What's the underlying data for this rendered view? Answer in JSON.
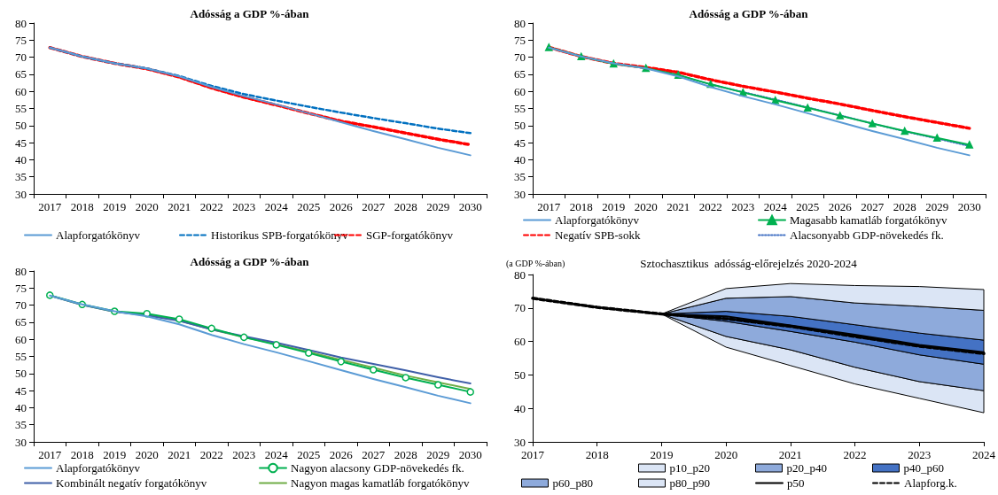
{
  "chart_data": [
    {
      "type": "line",
      "title": "Adósság a GDP %-ában",
      "categories": [
        "2017",
        "2018",
        "2019",
        "2020",
        "2021",
        "2022",
        "2023",
        "2024",
        "2025",
        "2026",
        "2027",
        "2028",
        "2029",
        "2030"
      ],
      "ylim": [
        30,
        80
      ],
      "yticks": [
        30,
        35,
        40,
        45,
        50,
        55,
        60,
        65,
        70,
        75,
        80
      ],
      "grid": false,
      "legend": "bottom",
      "series": [
        {
          "name": "Alapforgatókönyv",
          "color": "#5b9bd5",
          "line_style": "solid",
          "values": [
            72.8,
            70.2,
            68.2,
            66.7,
            64.4,
            61.3,
            58.6,
            56.2,
            53.6,
            51.0,
            48.4,
            46.0,
            43.5,
            41.3
          ]
        },
        {
          "name": "Historikus SPB-forgatókönyv",
          "color": "#0070c0",
          "line_style": "dashed",
          "values": [
            72.8,
            70.2,
            68.2,
            66.7,
            64.5,
            61.6,
            59.2,
            57.3,
            55.5,
            53.8,
            52.2,
            50.7,
            49.1,
            47.8
          ]
        },
        {
          "name": "SGP-forgatókönyv",
          "color": "#ff0000",
          "line_style": "dashed",
          "values": [
            72.8,
            70.2,
            68.2,
            66.6,
            64.2,
            61.0,
            58.3,
            56.0,
            53.6,
            51.3,
            49.6,
            47.8,
            46.0,
            44.4
          ]
        }
      ]
    },
    {
      "type": "line",
      "title": "Adósság a GDP %-ában",
      "categories": [
        "2017",
        "2018",
        "2019",
        "2020",
        "2021",
        "2022",
        "2023",
        "2024",
        "2025",
        "2026",
        "2027",
        "2028",
        "2029",
        "2030"
      ],
      "ylim": [
        30,
        80
      ],
      "yticks": [
        30,
        35,
        40,
        45,
        50,
        55,
        60,
        65,
        70,
        75,
        80
      ],
      "grid": false,
      "legend": "bottom",
      "series": [
        {
          "name": "Alapforgatókönyv",
          "color": "#5b9bd5",
          "line_style": "solid",
          "values": [
            72.8,
            70.2,
            68.2,
            66.7,
            64.4,
            61.3,
            58.6,
            56.2,
            53.6,
            51.0,
            48.4,
            46.0,
            43.5,
            41.3
          ]
        },
        {
          "name": "Magasabb kamatláb forgatókönyv",
          "color": "#00b050",
          "line_style": "solid",
          "marker": "triangle",
          "values": [
            72.9,
            70.2,
            68.1,
            66.8,
            64.8,
            62.1,
            59.7,
            57.4,
            55.2,
            52.9,
            50.6,
            48.4,
            46.4,
            44.4
          ]
        },
        {
          "name": "Negatív SPB-sokk",
          "color": "#ff0000",
          "line_style": "dashed",
          "values": [
            72.9,
            70.2,
            68.2,
            67.0,
            65.6,
            63.4,
            61.5,
            59.8,
            58.0,
            56.3,
            54.4,
            52.6,
            50.9,
            49.2
          ]
        },
        {
          "name": "Alacsonyabb GDP-növekedés fk.",
          "color": "#4472c4",
          "line_style": "dotted",
          "values": [
            72.9,
            70.2,
            68.1,
            66.8,
            64.8,
            62.0,
            59.8,
            57.6,
            55.3,
            53.0,
            50.6,
            48.3,
            46.2,
            44.0
          ]
        }
      ]
    },
    {
      "type": "line",
      "title": "Adósság a GDP %-ában",
      "categories": [
        "2017",
        "2018",
        "2019",
        "2020",
        "2021",
        "2022",
        "2023",
        "2024",
        "2025",
        "2026",
        "2027",
        "2028",
        "2029",
        "2030"
      ],
      "ylim": [
        30,
        80
      ],
      "yticks": [
        30,
        35,
        40,
        45,
        50,
        55,
        60,
        65,
        70,
        75,
        80
      ],
      "grid": false,
      "legend": "bottom",
      "series": [
        {
          "name": "Alapforgatókönyv",
          "color": "#5b9bd5",
          "line_style": "solid",
          "values": [
            72.8,
            70.2,
            68.2,
            66.7,
            64.4,
            61.3,
            58.6,
            56.2,
            53.6,
            51.0,
            48.4,
            46.0,
            43.5,
            41.3
          ]
        },
        {
          "name": "Nagyon alacsony GDP-növekedés fk.",
          "color": "#00b050",
          "line_style": "solid",
          "marker": "circle",
          "values": [
            72.9,
            70.2,
            68.2,
            67.5,
            65.9,
            63.2,
            60.6,
            58.4,
            56.0,
            53.5,
            51.1,
            48.8,
            46.7,
            44.6
          ]
        },
        {
          "name": "Kombinált negatív forgatókönyv",
          "color": "#3f5fa8",
          "line_style": "solid",
          "values": [
            72.8,
            70.1,
            68.1,
            67.0,
            65.4,
            62.9,
            60.9,
            59.0,
            56.9,
            54.7,
            52.8,
            50.9,
            48.9,
            47.1
          ]
        },
        {
          "name": "Nagyon magas kamatláb forgatókönyv",
          "color": "#70ad47",
          "line_style": "solid",
          "values": [
            72.8,
            70.1,
            68.1,
            67.2,
            65.5,
            62.9,
            60.6,
            58.6,
            56.3,
            54.0,
            51.7,
            49.4,
            47.4,
            45.5
          ]
        }
      ]
    },
    {
      "type": "area",
      "title": "Sztochasztikus  adósság-előrejelzés 2020-2024",
      "ylabel": "(a GDP %-ában)",
      "categories": [
        "2017",
        "2018",
        "2019",
        "2020",
        "2021",
        "2022",
        "2023",
        "2024"
      ],
      "ylim": [
        30,
        80
      ],
      "yticks": [
        30,
        40,
        50,
        60,
        70,
        80
      ],
      "grid": false,
      "legend": "bottom",
      "series": [
        {
          "name": "p10_p20",
          "color": "#dbe5f5",
          "values": [
            null,
            null,
            null,
            null,
            null,
            null,
            null,
            null
          ],
          "lower": [
            null,
            null,
            68.2,
            58.3,
            52.8,
            47.3,
            43.0,
            38.7
          ],
          "upper": [
            null,
            null,
            68.2,
            61.5,
            57.5,
            52.3,
            48.0,
            45.3
          ]
        },
        {
          "name": "p20_p40",
          "color": "#8eaadb",
          "values": [
            null,
            null,
            null,
            null,
            null,
            null,
            null,
            null
          ],
          "lower": [
            null,
            null,
            68.2,
            61.5,
            57.5,
            52.3,
            48.0,
            45.3
          ],
          "upper": [
            null,
            null,
            68.2,
            66.0,
            63.0,
            59.8,
            56.0,
            53.2
          ]
        },
        {
          "name": "p40_p60",
          "color": "#4472c4",
          "values": [
            null,
            null,
            null,
            null,
            null,
            null,
            null,
            null
          ],
          "lower": [
            null,
            null,
            68.2,
            66.0,
            63.0,
            59.8,
            56.0,
            53.2
          ],
          "upper": [
            null,
            null,
            68.2,
            69.0,
            67.5,
            65.0,
            62.5,
            60.4
          ]
        },
        {
          "name": "p60_p80",
          "color": "#8eaadb",
          "values": [
            null,
            null,
            null,
            null,
            null,
            null,
            null,
            null
          ],
          "lower": [
            null,
            null,
            68.2,
            69.0,
            67.5,
            65.0,
            62.5,
            60.4
          ],
          "upper": [
            null,
            null,
            68.2,
            72.9,
            73.4,
            71.5,
            70.5,
            69.3
          ]
        },
        {
          "name": "p80_p90",
          "color": "#dbe5f5",
          "values": [
            null,
            null,
            null,
            null,
            null,
            null,
            null,
            null
          ],
          "lower": [
            null,
            null,
            68.2,
            72.9,
            73.4,
            71.5,
            70.5,
            69.3
          ],
          "upper": [
            null,
            null,
            68.2,
            75.8,
            77.3,
            76.7,
            76.4,
            75.5
          ]
        },
        {
          "name": "p50",
          "type": "line",
          "color": "#000000",
          "line_style": "solid",
          "values": [
            72.9,
            70.2,
            68.2,
            67.5,
            64.8,
            62.0,
            59.0,
            56.8
          ]
        },
        {
          "name": "Alapforg.k.",
          "type": "line",
          "color": "#000000",
          "line_style": "dashed",
          "values": [
            72.9,
            70.2,
            68.2,
            66.8,
            64.5,
            61.5,
            58.6,
            56.4
          ]
        }
      ]
    }
  ]
}
